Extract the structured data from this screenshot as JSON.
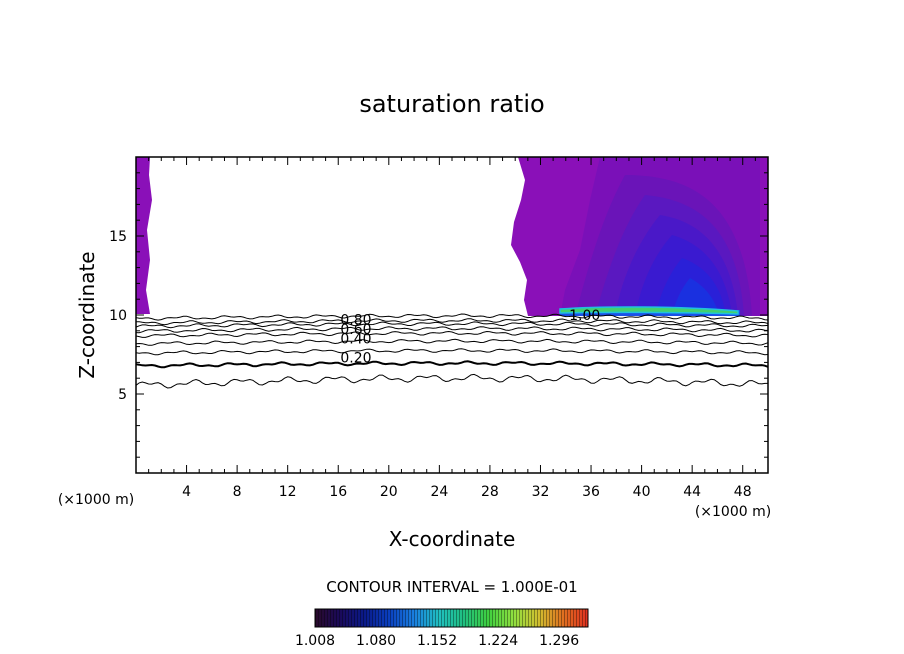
{
  "chart_data": {
    "type": "contour",
    "title": "saturation ratio",
    "xlabel": "X-coordinate",
    "ylabel": "Z-coordinate",
    "x_unit_left": "(×1000 m)",
    "x_unit_right": "(×1000 m)",
    "xlim": [
      0,
      50
    ],
    "ylim": [
      0,
      20
    ],
    "xticks": [
      4,
      8,
      12,
      16,
      20,
      24,
      28,
      32,
      36,
      40,
      44,
      48
    ],
    "yticks": [
      5,
      10,
      15
    ],
    "contour_interval_text": "CONTOUR INTERVAL = 1.000E-01",
    "contour_levels": [
      0.1,
      0.2,
      0.3,
      0.4,
      0.5,
      0.6,
      0.7,
      0.8,
      0.9
    ],
    "contour_labels": [
      {
        "text": "0.20",
        "x": 17.4,
        "y": 7.3
      },
      {
        "text": "0.40",
        "x": 17.4,
        "y": 8.5
      },
      {
        "text": "0.60",
        "x": 17.4,
        "y": 9.1
      },
      {
        "text": "0.80",
        "x": 17.4,
        "y": 9.7
      },
      {
        "text": "1.00",
        "x": 35.5,
        "y": 10.0
      }
    ],
    "colorbar": {
      "min": 1.008,
      "max": 1.33,
      "tick_labels": [
        "1.008",
        "1.080",
        "1.152",
        "1.224",
        "1.296"
      ],
      "colors": [
        "#2a0a2a",
        "#1a0a5a",
        "#0a1a8a",
        "#0a40c0",
        "#1a80e0",
        "#20c0c0",
        "#20c080",
        "#40d040",
        "#90e040",
        "#d0c030",
        "#e07020",
        "#e03020"
      ]
    }
  }
}
